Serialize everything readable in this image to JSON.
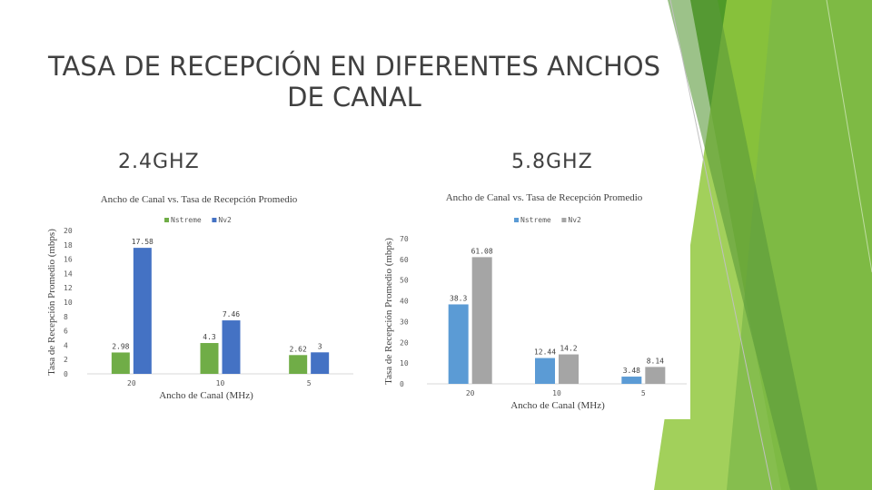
{
  "slide": {
    "title": "TASA DE RECEPCIÓN EN DIFERENTES ANCHOS DE CANAL",
    "band_left": "2.4GHZ",
    "band_right": "5.8GHZ"
  },
  "colors": {
    "accent_dark": "#4e9a28",
    "accent_light": "#92c83e",
    "nstreme": "#70ad47",
    "nv2": "#4472c4",
    "nstreme_58": "#5b9bd5",
    "nv2_58": "#a5a5a5"
  },
  "chart_data": [
    {
      "type": "bar",
      "title": "Ancho de Canal vs. Tasa de Recepción Promedio",
      "xlabel": "Ancho de Canal (MHz)",
      "ylabel": "Tasa de Recepción Promedio (mbps)",
      "categories": [
        "20",
        "10",
        "5"
      ],
      "series": [
        {
          "name": "Nstreme",
          "color": "#70ad47",
          "values": [
            2.98,
            4.3,
            2.62
          ]
        },
        {
          "name": "Nv2",
          "color": "#4472c4",
          "values": [
            17.58,
            7.46,
            3
          ]
        }
      ],
      "ylim": [
        0,
        20
      ],
      "yticks": [
        "0",
        "2",
        "4",
        "6",
        "8",
        "10",
        "12",
        "14",
        "16",
        "18",
        "20"
      ],
      "grid": false,
      "legend": "top"
    },
    {
      "type": "bar",
      "title": "Ancho de Canal vs. Tasa de Recepción Promedio",
      "xlabel": "Ancho de Canal (MHz)",
      "ylabel": "Tasa de Recepción Promedio (mbps)",
      "categories": [
        "20",
        "10",
        "5"
      ],
      "series": [
        {
          "name": "Nstreme",
          "color": "#5b9bd5",
          "values": [
            38.3,
            12.44,
            3.48
          ]
        },
        {
          "name": "Nv2",
          "color": "#a5a5a5",
          "values": [
            61.08,
            14.2,
            8.14
          ]
        }
      ],
      "ylim": [
        0,
        70
      ],
      "yticks": [
        "0",
        "10",
        "20",
        "30",
        "40",
        "50",
        "60",
        "70"
      ],
      "grid": false,
      "legend": "top-right"
    }
  ]
}
